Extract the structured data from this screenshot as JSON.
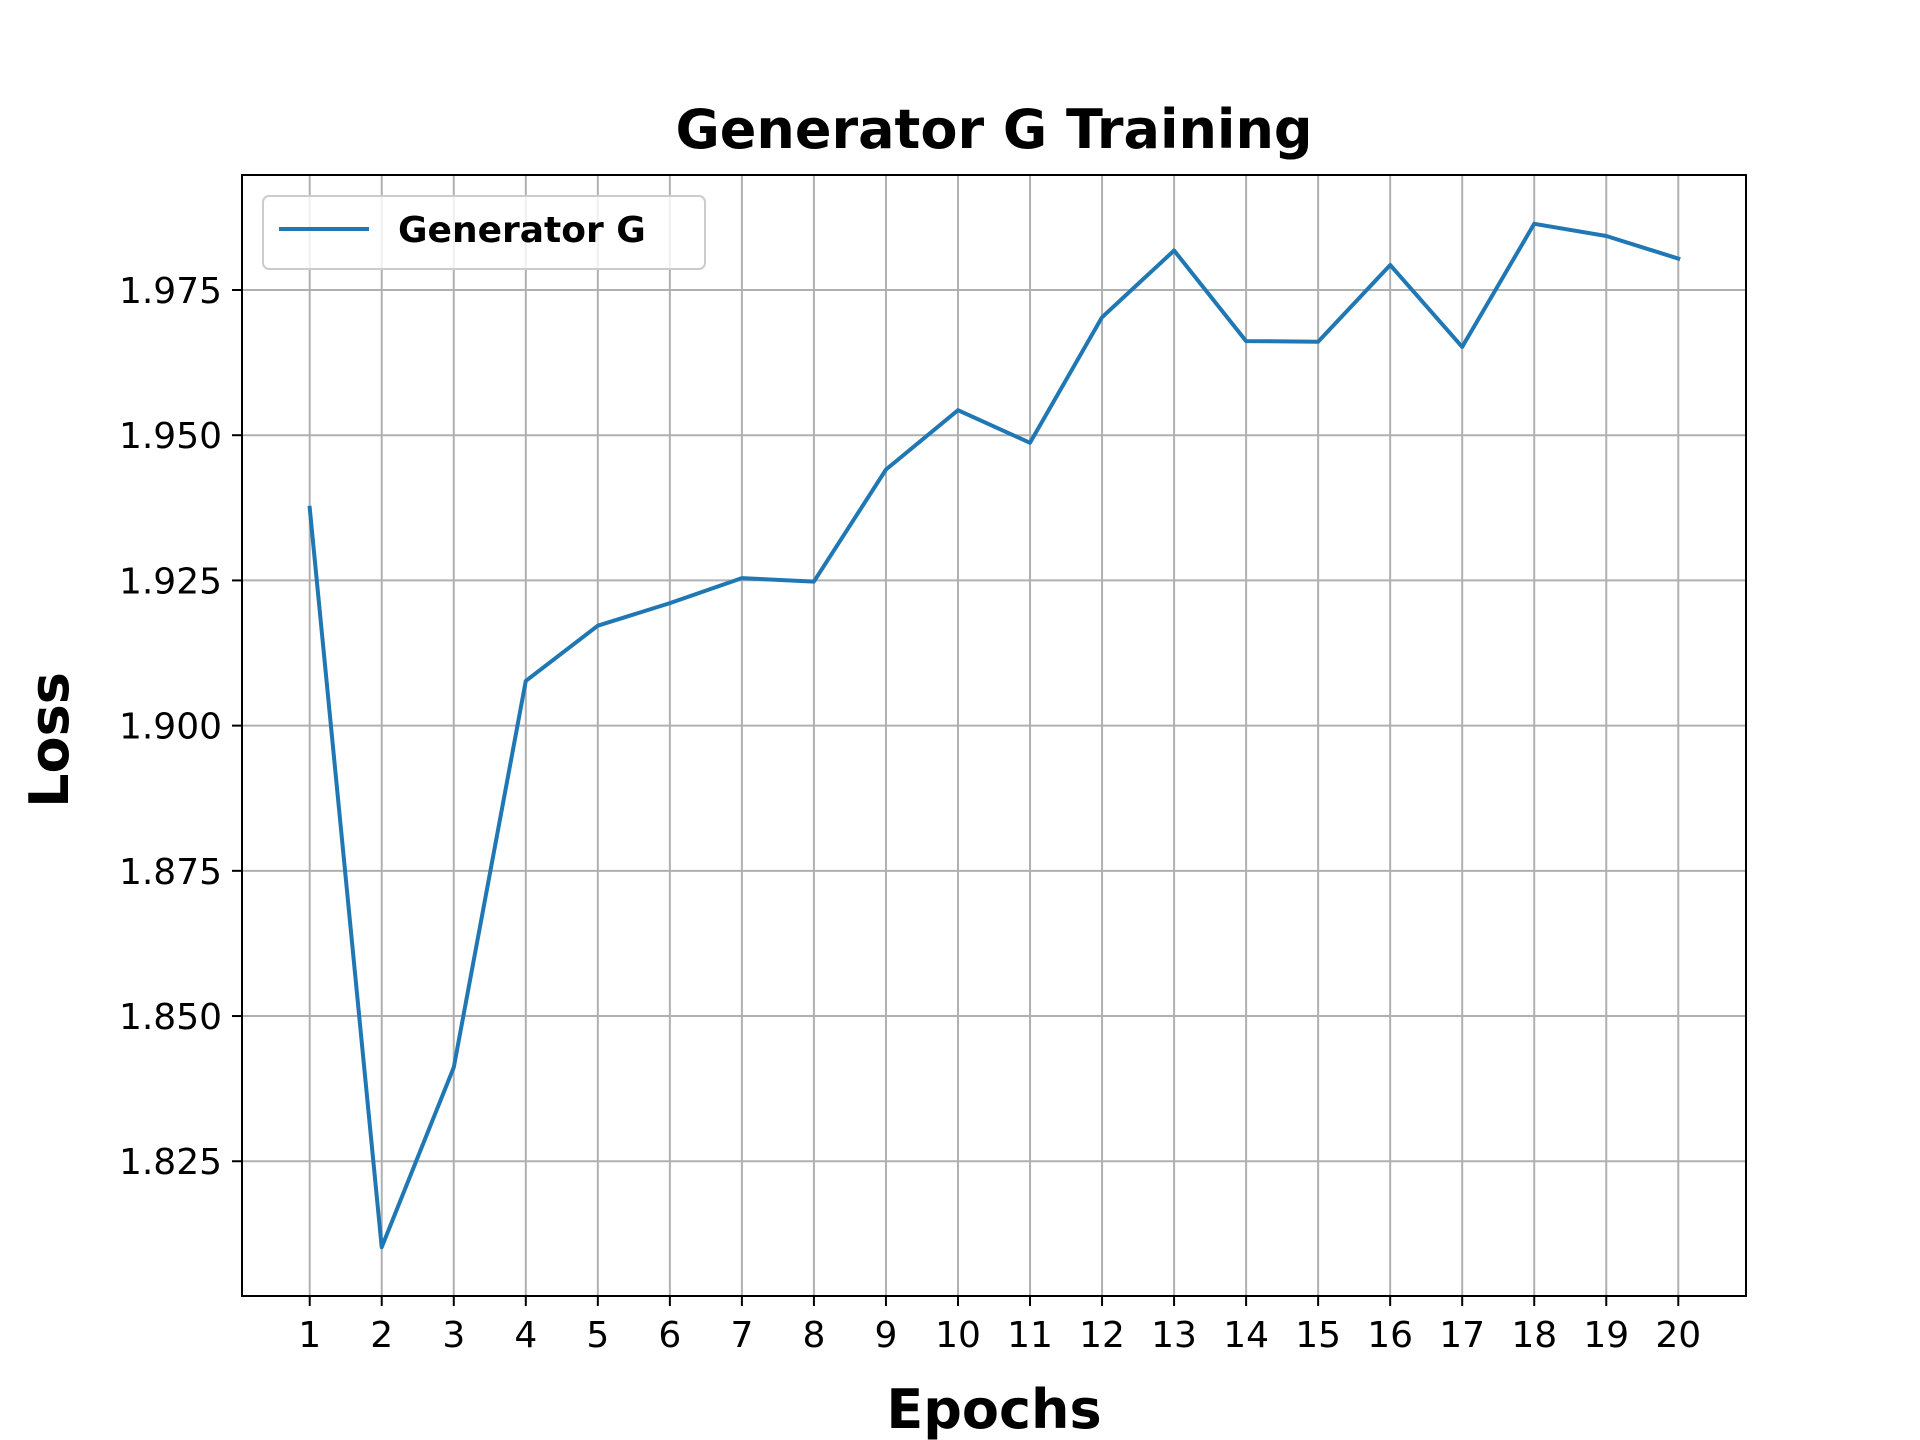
{
  "chart_data": {
    "type": "line",
    "title": "Generator G Training",
    "xlabel": "Epochs",
    "ylabel": "Loss",
    "x": [
      1,
      2,
      3,
      4,
      5,
      6,
      7,
      8,
      9,
      10,
      11,
      12,
      13,
      14,
      15,
      16,
      17,
      18,
      19,
      20
    ],
    "xticks": [
      "1",
      "2",
      "3",
      "4",
      "5",
      "6",
      "7",
      "8",
      "9",
      "10",
      "11",
      "12",
      "13",
      "14",
      "15",
      "16",
      "17",
      "18",
      "19",
      "20"
    ],
    "yticks": [
      "1.825",
      "1.850",
      "1.875",
      "1.900",
      "1.925",
      "1.950",
      "1.975"
    ],
    "ytick_values": [
      1.825,
      1.85,
      1.875,
      1.9,
      1.925,
      1.95,
      1.975
    ],
    "xlim": [
      0.06,
      20.94
    ],
    "ylim": [
      1.8018,
      1.9948
    ],
    "grid": true,
    "legend_position": "top-left",
    "series": [
      {
        "name": "Generator G",
        "color": "#1f77b4",
        "values": [
          1.9375,
          1.8102,
          1.8412,
          1.9077,
          1.9172,
          1.9211,
          1.9254,
          1.9248,
          1.9441,
          1.9543,
          1.9487,
          1.9703,
          1.9818,
          1.9662,
          1.9661,
          1.9793,
          1.9652,
          1.9864,
          1.9843,
          1.9804
        ]
      }
    ]
  }
}
